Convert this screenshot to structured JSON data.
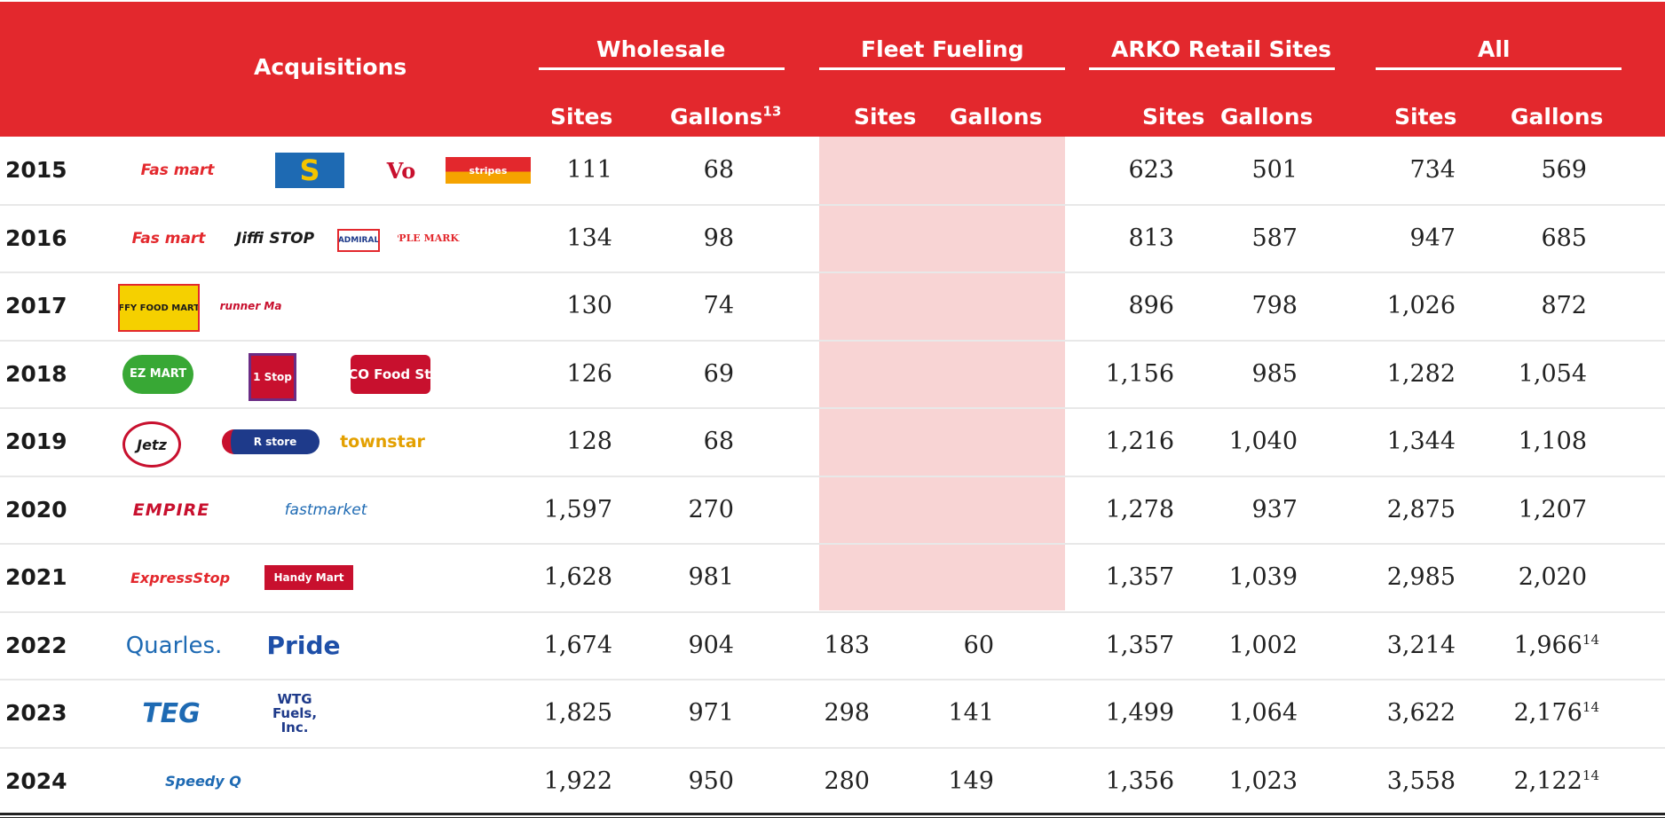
{
  "header": {
    "acquisitions": "Acquisitions",
    "wholesale": "Wholesale",
    "fleet": "Fleet  Fueling",
    "arko": "ARKO Retail Sites",
    "all": "All",
    "sites": "Sites",
    "gallons": "Gallons",
    "footnote13": "13"
  },
  "footnote14": "14",
  "colors": {
    "header": "#e3282d",
    "fleet_shade": "#f8d4d4"
  },
  "rows": [
    {
      "year": "2015",
      "logos": [
        "Fas mart",
        "S",
        "Vo",
        "stripes"
      ],
      "w_sites": "111",
      "w_gal": "68",
      "f_sites": "",
      "f_gal": "",
      "a_sites": "623",
      "a_gal": "501",
      "all_sites": "734",
      "all_gal": "569",
      "note": ""
    },
    {
      "year": "2016",
      "logos": [
        "Fas mart",
        "Jiffi STOP",
        "ADMIRAL",
        "APPLE MARKET"
      ],
      "w_sites": "134",
      "w_gal": "98",
      "f_sites": "",
      "f_gal": "",
      "a_sites": "813",
      "a_gal": "587",
      "all_sites": "947",
      "all_gal": "685",
      "note": ""
    },
    {
      "year": "2017",
      "logos": [
        "JIFFY FOOD MARTS",
        "Roadrunner Markets"
      ],
      "w_sites": "130",
      "w_gal": "74",
      "f_sites": "",
      "f_gal": "",
      "a_sites": "896",
      "a_gal": "798",
      "all_sites": "1,026",
      "all_gal": "872",
      "note": ""
    },
    {
      "year": "2018",
      "logos": [
        "EZ MART",
        "1 Stop",
        "RENCO Food Stores"
      ],
      "w_sites": "126",
      "w_gal": "69",
      "f_sites": "",
      "f_gal": "",
      "a_sites": "1,156",
      "a_gal": "985",
      "all_sites": "1,282",
      "all_gal": "1,054",
      "note": ""
    },
    {
      "year": "2019",
      "logos": [
        "Jetz",
        "R store",
        "townstar"
      ],
      "w_sites": "128",
      "w_gal": "68",
      "f_sites": "",
      "f_gal": "",
      "a_sites": "1,216",
      "a_gal": "1,040",
      "all_sites": "1,344",
      "all_gal": "1,108",
      "note": ""
    },
    {
      "year": "2020",
      "logos": [
        "EMPIRE",
        "fastmarket"
      ],
      "w_sites": "1,597",
      "w_gal": "270",
      "f_sites": "",
      "f_gal": "",
      "a_sites": "1,278",
      "a_gal": "937",
      "all_sites": "2,875",
      "all_gal": "1,207",
      "note": ""
    },
    {
      "year": "2021",
      "logos": [
        "ExpressStop",
        "Handy Mart"
      ],
      "w_sites": "1,628",
      "w_gal": "981",
      "f_sites": "",
      "f_gal": "",
      "a_sites": "1,357",
      "a_gal": "1,039",
      "all_sites": "2,985",
      "all_gal": "2,020",
      "note": ""
    },
    {
      "year": "2022",
      "logos": [
        "Quarles.",
        "Pride"
      ],
      "w_sites": "1,674",
      "w_gal": "904",
      "f_sites": "183",
      "f_gal": "60",
      "a_sites": "1,357",
      "a_gal": "1,002",
      "all_sites": "3,214",
      "all_gal": "1,966",
      "note": "14"
    },
    {
      "year": "2023",
      "logos": [
        "TEG",
        "WTG Fuels, Inc."
      ],
      "w_sites": "1,825",
      "w_gal": "971",
      "f_sites": "298",
      "f_gal": "141",
      "a_sites": "1,499",
      "a_gal": "1,064",
      "all_sites": "3,622",
      "all_gal": "2,176",
      "note": "14"
    },
    {
      "year": "2024",
      "logos": [
        "Speedy Q"
      ],
      "w_sites": "1,922",
      "w_gal": "950",
      "f_sites": "280",
      "f_gal": "149",
      "a_sites": "1,356",
      "a_gal": "1,023",
      "all_sites": "3,558",
      "all_gal": "2,122",
      "note": "14"
    }
  ]
}
